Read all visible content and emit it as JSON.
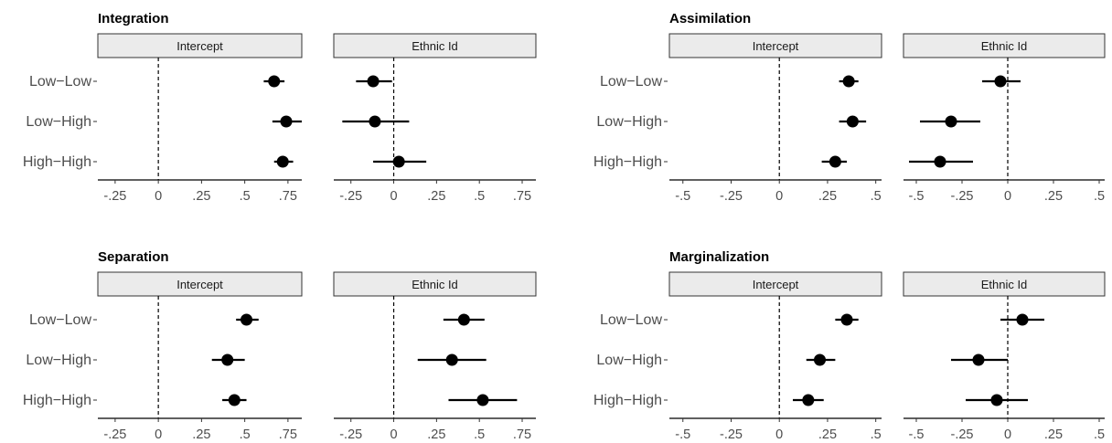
{
  "chart_data": [
    {
      "type": "scatter",
      "title": "Integration",
      "categories": [
        "Low−Low",
        "Low−High",
        "High−High"
      ],
      "panels": [
        {
          "strip": "Intercept",
          "xlim": [
            -0.35,
            0.83
          ],
          "ticks": [
            -0.25,
            0,
            0.25,
            0.5,
            0.75
          ],
          "tick_labels": [
            "-.25",
            "0",
            ".25",
            ".5",
            ".75"
          ],
          "estimates": [
            0.67,
            0.74,
            0.72
          ],
          "ci_low": [
            0.61,
            0.66,
            0.67
          ],
          "ci_high": [
            0.73,
            0.83,
            0.78
          ]
        },
        {
          "strip": "Ethnic Id",
          "xlim": [
            -0.35,
            0.83
          ],
          "ticks": [
            -0.25,
            0,
            0.25,
            0.5,
            0.75
          ],
          "tick_labels": [
            "-.25",
            "0",
            ".25",
            ".5",
            ".75"
          ],
          "estimates": [
            -0.12,
            -0.11,
            0.03
          ],
          "ci_low": [
            -0.22,
            -0.3,
            -0.12
          ],
          "ci_high": [
            -0.01,
            0.09,
            0.19
          ]
        }
      ]
    },
    {
      "type": "scatter",
      "title": "Assimilation",
      "categories": [
        "Low−Low",
        "Low−High",
        "High−High"
      ],
      "panels": [
        {
          "strip": "Intercept",
          "xlim": [
            -0.57,
            0.53
          ],
          "ticks": [
            -0.5,
            -0.25,
            0,
            0.25,
            0.5
          ],
          "tick_labels": [
            "-.5",
            "-.25",
            "0",
            ".25",
            ".5"
          ],
          "estimates": [
            0.36,
            0.38,
            0.29
          ],
          "ci_low": [
            0.31,
            0.31,
            0.22
          ],
          "ci_high": [
            0.41,
            0.45,
            0.35
          ]
        },
        {
          "strip": "Ethnic Id",
          "xlim": [
            -0.57,
            0.53
          ],
          "ticks": [
            -0.5,
            -0.25,
            0,
            0.25,
            0.5
          ],
          "tick_labels": [
            "-.5",
            "-.25",
            "0",
            ".25",
            ".5"
          ],
          "estimates": [
            -0.04,
            -0.31,
            -0.37
          ],
          "ci_low": [
            -0.14,
            -0.48,
            -0.54
          ],
          "ci_high": [
            0.07,
            -0.15,
            -0.19
          ]
        }
      ]
    },
    {
      "type": "scatter",
      "title": "Separation",
      "categories": [
        "Low−Low",
        "Low−High",
        "High−High"
      ],
      "panels": [
        {
          "strip": "Intercept",
          "xlim": [
            -0.35,
            0.83
          ],
          "ticks": [
            -0.25,
            0,
            0.25,
            0.5,
            0.75
          ],
          "tick_labels": [
            "-.25",
            "0",
            ".25",
            ".5",
            ".75"
          ],
          "estimates": [
            0.51,
            0.4,
            0.44
          ],
          "ci_low": [
            0.45,
            0.31,
            0.37
          ],
          "ci_high": [
            0.58,
            0.5,
            0.51
          ]
        },
        {
          "strip": "Ethnic Id",
          "xlim": [
            -0.35,
            0.83
          ],
          "ticks": [
            -0.25,
            0,
            0.25,
            0.5,
            0.75
          ],
          "tick_labels": [
            "-.25",
            "0",
            ".25",
            ".5",
            ".75"
          ],
          "estimates": [
            0.41,
            0.34,
            0.52
          ],
          "ci_low": [
            0.29,
            0.14,
            0.32
          ],
          "ci_high": [
            0.53,
            0.54,
            0.72
          ]
        }
      ]
    },
    {
      "type": "scatter",
      "title": "Marginalization",
      "categories": [
        "Low−Low",
        "Low−High",
        "High−High"
      ],
      "panels": [
        {
          "strip": "Intercept",
          "xlim": [
            -0.57,
            0.53
          ],
          "ticks": [
            -0.5,
            -0.25,
            0,
            0.25,
            0.5
          ],
          "tick_labels": [
            "-.5",
            "-.25",
            "0",
            ".25",
            ".5"
          ],
          "estimates": [
            0.35,
            0.21,
            0.15
          ],
          "ci_low": [
            0.29,
            0.14,
            0.07
          ],
          "ci_high": [
            0.41,
            0.29,
            0.23
          ]
        },
        {
          "strip": "Ethnic Id",
          "xlim": [
            -0.57,
            0.53
          ],
          "ticks": [
            -0.5,
            -0.25,
            0,
            0.25,
            0.5
          ],
          "tick_labels": [
            "-.5",
            "-.25",
            "0",
            ".25",
            ".5"
          ],
          "estimates": [
            0.08,
            -0.16,
            -0.06
          ],
          "ci_low": [
            -0.04,
            -0.31,
            -0.23
          ],
          "ci_high": [
            0.2,
            0.0,
            0.11
          ]
        }
      ]
    }
  ]
}
